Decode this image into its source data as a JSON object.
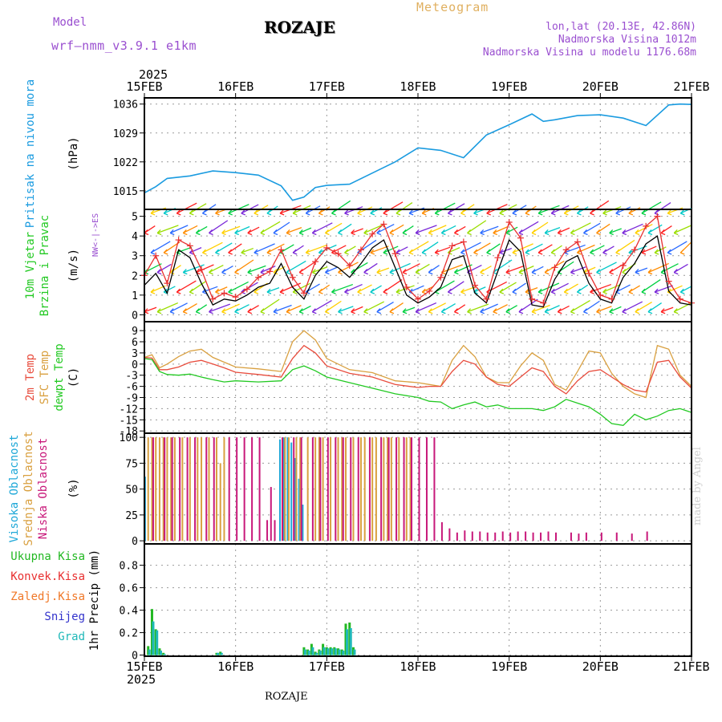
{
  "header": {
    "model_label": "Model",
    "model_name": "wrf—nmm_v3.9.1  e1km",
    "station": "ROZAJE",
    "chart_kind": "Meteogram",
    "lonlat": "lon,lat (20.13E, 42.86N)",
    "altitude": "Nadmorska Visina 1012m",
    "model_altitude": "Nadmorska Visina u modelu 1176.68m",
    "year_top": "2025",
    "year_bottom": "2025",
    "footer_station": "ROZAJE",
    "credit": "made by Angel"
  },
  "colors": {
    "pressure": "#1a9be0",
    "temp2m": "#e84c3d",
    "sfc": "#d9a040",
    "dewpt": "#22c922",
    "wind_speed": "#000000",
    "wind_gust": "#e83030",
    "high_cloud": "#1fa8d8",
    "mid_cloud": "#d9a040",
    "low_cloud": "#c8187a",
    "precip_total": "#22b822",
    "precip_conv": "#e83030",
    "precip_frz": "#f07828",
    "snow": "#3333cc",
    "graupel": "#1fb8b8",
    "model_label": "#9a4fd0",
    "meteogram_title": "#e0b060"
  },
  "chart_data": {
    "type": "line",
    "x_ticks": [
      "15FEB",
      "16FEB",
      "17FEB",
      "18FEB",
      "19FEB",
      "20FEB",
      "21FEB"
    ],
    "x_range_hours": [
      0,
      144
    ],
    "panels": [
      {
        "id": "pressure",
        "type": "line",
        "ylabel": [
          "Pritisak na nivou mora",
          "(hPa)"
        ],
        "yticks": [
          1015,
          1022,
          1029,
          1036
        ],
        "ylim": [
          1010.5,
          1037.5
        ],
        "series": [
          {
            "x": [
              0,
              3,
              6,
              12,
              18,
              24,
              30,
              36,
              39,
              42,
              45,
              48,
              54,
              60,
              66,
              72,
              78,
              84,
              90,
              96,
              102,
              105,
              108,
              114,
              120,
              126,
              132,
              138,
              141,
              144
            ],
            "values": [
              1014.5,
              1016.0,
              1018.0,
              1018.6,
              1019.8,
              1019.4,
              1018.8,
              1016.2,
              1012.7,
              1013.5,
              1015.8,
              1016.3,
              1016.6,
              1019.3,
              1022.0,
              1025.4,
              1024.8,
              1023.0,
              1028.5,
              1031.0,
              1033.6,
              1031.8,
              1032.2,
              1033.2,
              1033.4,
              1032.6,
              1030.8,
              1035.8,
              1036.0,
              1035.9
            ]
          }
        ]
      },
      {
        "id": "wind",
        "type": "line",
        "ylabel": [
          "10m Vjetar",
          "Brzina i Pravac",
          "(m/s)"
        ],
        "compass": [
          "N",
          "W",
          "<",
          "-",
          "|",
          "-",
          ">",
          "E",
          "S"
        ],
        "yticks": [
          0,
          1,
          2,
          3,
          4,
          5
        ],
        "ylim": [
          -0.35,
          5.35
        ],
        "series": [
          {
            "name": "speed",
            "x": [
              0,
              3,
              6,
              9,
              12,
              15,
              18,
              21,
              24,
              27,
              30,
              33,
              36,
              39,
              42,
              45,
              48,
              51,
              54,
              57,
              60,
              63,
              66,
              69,
              72,
              75,
              78,
              81,
              84,
              87,
              90,
              93,
              96,
              99,
              102,
              105,
              108,
              111,
              114,
              117,
              120,
              123,
              126,
              129,
              132,
              135,
              138,
              141,
              144
            ],
            "values": [
              1.5,
              2.1,
              1.1,
              3.3,
              2.9,
              1.6,
              0.5,
              0.8,
              0.7,
              1.0,
              1.4,
              1.6,
              2.6,
              1.4,
              0.8,
              2.0,
              2.7,
              2.4,
              1.9,
              2.6,
              3.4,
              3.8,
              2.4,
              1.0,
              0.6,
              0.9,
              1.4,
              2.8,
              3.0,
              1.1,
              0.6,
              2.2,
              3.8,
              3.2,
              0.5,
              0.4,
              1.8,
              2.7,
              3.0,
              1.6,
              0.8,
              0.6,
              1.9,
              2.6,
              3.6,
              4.0,
              1.2,
              0.6,
              0.5
            ]
          },
          {
            "name": "gust",
            "x": [
              0,
              3,
              6,
              9,
              12,
              15,
              18,
              21,
              24,
              27,
              30,
              33,
              36,
              39,
              42,
              45,
              48,
              51,
              54,
              57,
              60,
              63,
              66,
              69,
              72,
              75,
              78,
              81,
              84,
              87,
              90,
              93,
              96,
              99,
              102,
              105,
              108,
              111,
              114,
              117,
              120,
              123,
              126,
              129,
              132,
              135,
              138,
              141,
              144
            ],
            "values": [
              2.0,
              3.0,
              1.6,
              3.8,
              3.5,
              2.3,
              0.8,
              1.1,
              0.9,
              1.3,
              1.9,
              2.2,
              3.3,
              1.9,
              1.1,
              2.7,
              3.4,
              3.1,
              2.5,
              3.3,
              4.1,
              4.6,
              3.1,
              1.4,
              0.8,
              1.2,
              1.9,
              3.5,
              3.7,
              1.5,
              0.8,
              2.9,
              4.7,
              3.9,
              0.8,
              0.6,
              2.4,
              3.3,
              3.7,
              2.1,
              1.0,
              0.8,
              2.5,
              3.3,
              4.5,
              5.0,
              1.7,
              0.8,
              0.6
            ]
          }
        ]
      },
      {
        "id": "temperature",
        "type": "line",
        "ylabel": [
          "2m Temp",
          "SFC Temp",
          "dewpt Temp",
          "(C)"
        ],
        "yticks": [
          -18,
          -15,
          -12,
          -9,
          -6,
          -3,
          0,
          3,
          6,
          9
        ],
        "ylim": [
          -18.6,
          11.4
        ],
        "series": [
          {
            "name": "sfc",
            "x": [
              0,
              2,
              4,
              6,
              9,
              12,
              15,
              18,
              21,
              24,
              30,
              36,
              39,
              42,
              45,
              48,
              54,
              60,
              66,
              72,
              75,
              78,
              81,
              84,
              87,
              90,
              93,
              96,
              99,
              102,
              105,
              108,
              111,
              114,
              117,
              120,
              123,
              126,
              129,
              132,
              135,
              138,
              141,
              144
            ],
            "values": [
              1.8,
              2.5,
              -1.0,
              0.0,
              2.0,
              3.5,
              4.0,
              1.8,
              0.5,
              -0.8,
              -1.3,
              -2.0,
              6.0,
              9.0,
              6.5,
              1.5,
              -1.5,
              -2.3,
              -4.5,
              -5.0,
              -5.5,
              -6.0,
              1.0,
              5.0,
              2.0,
              -3.5,
              -5.0,
              -5.0,
              -0.5,
              3.0,
              1.0,
              -5.5,
              -7.0,
              -2.0,
              3.5,
              3.0,
              -2.5,
              -6.0,
              -8.0,
              -9.0,
              5.0,
              4.0,
              -3.0,
              -6.0
            ]
          },
          {
            "name": "temp2m",
            "x": [
              0,
              2,
              4,
              6,
              9,
              12,
              15,
              18,
              21,
              24,
              30,
              36,
              39,
              42,
              45,
              48,
              54,
              60,
              66,
              72,
              75,
              78,
              81,
              84,
              87,
              90,
              93,
              96,
              99,
              102,
              105,
              108,
              111,
              114,
              117,
              120,
              123,
              126,
              129,
              132,
              135,
              138,
              141,
              144
            ],
            "values": [
              1.8,
              1.6,
              -1.5,
              -1.5,
              -0.8,
              0.5,
              1.0,
              0.0,
              -1.0,
              -2.2,
              -2.8,
              -3.5,
              1.5,
              5.0,
              3.0,
              -0.5,
              -2.5,
              -3.5,
              -5.5,
              -6.3,
              -6.0,
              -6.0,
              -2.0,
              1.0,
              0.0,
              -3.5,
              -5.5,
              -6.0,
              -3.5,
              -1.0,
              -2.0,
              -6.0,
              -8.0,
              -4.5,
              -2.0,
              -1.5,
              -3.5,
              -5.5,
              -7.0,
              -7.5,
              0.5,
              1.0,
              -3.5,
              -6.5
            ]
          },
          {
            "name": "dewpt",
            "x": [
              0,
              2,
              4,
              6,
              9,
              12,
              15,
              18,
              21,
              24,
              30,
              36,
              39,
              42,
              45,
              48,
              54,
              60,
              66,
              72,
              75,
              78,
              81,
              84,
              87,
              90,
              93,
              96,
              99,
              102,
              105,
              108,
              111,
              114,
              117,
              120,
              123,
              126,
              129,
              132,
              135,
              138,
              141,
              144
            ],
            "values": [
              1.5,
              1.2,
              -2.0,
              -2.8,
              -3.0,
              -2.7,
              -3.5,
              -4.2,
              -4.8,
              -4.5,
              -4.8,
              -4.5,
              -1.5,
              -0.5,
              -1.8,
              -3.5,
              -5.0,
              -6.5,
              -8.0,
              -9.0,
              -10.0,
              -10.2,
              -12.0,
              -11.0,
              -10.2,
              -11.5,
              -11.0,
              -12.0,
              -12.0,
              -12.0,
              -12.5,
              -11.5,
              -9.5,
              -10.5,
              -11.5,
              -13.5,
              -16.0,
              -16.5,
              -13.5,
              -15.0,
              -14.0,
              -12.5,
              -12.0,
              -13.0
            ]
          }
        ]
      },
      {
        "id": "clouds",
        "type": "bar",
        "ylabel": [
          "Visoka Oblacnost",
          "Srednja Oblacnost",
          "Niska Oblacnost",
          "(%)"
        ],
        "yticks": [
          0,
          25,
          50,
          75,
          100
        ],
        "ylim": [
          -3,
          104
        ],
        "series": [
          {
            "name": "high",
            "x": [
              0.5,
              36,
              37,
              38,
              39,
              40,
              41,
              42
            ],
            "values": [
              62,
              98,
              100,
              100,
              95,
              80,
              60,
              35
            ]
          },
          {
            "name": "mid",
            "x": [
              1,
              2,
              3,
              4,
              5,
              6,
              7,
              8,
              10,
              12,
              14,
              15,
              17,
              19,
              20,
              21,
              37,
              38,
              40,
              41,
              43,
              45,
              46,
              47,
              49,
              51,
              52,
              53,
              55,
              57,
              58,
              60,
              61,
              63,
              64,
              65,
              67,
              69,
              70
            ],
            "values": [
              100,
              100,
              100,
              100,
              100,
              100,
              100,
              100,
              100,
              100,
              100,
              100,
              100,
              100,
              75,
              100,
              100,
              100,
              100,
              100,
              100,
              100,
              100,
              100,
              100,
              100,
              100,
              100,
              100,
              100,
              100,
              100,
              100,
              100,
              100,
              100,
              100,
              100,
              100
            ]
          },
          {
            "name": "low",
            "x": [
              2,
              5,
              7,
              9,
              11,
              13,
              16,
              18,
              22,
              24,
              26,
              28,
              30,
              32,
              33,
              34,
              36,
              39,
              41,
              44,
              46,
              48,
              50,
              52,
              54,
              56,
              59,
              62,
              64,
              66,
              68,
              70,
              72,
              74,
              76,
              78,
              80,
              82,
              84,
              86,
              88,
              90,
              92,
              94,
              96,
              98,
              100,
              102,
              104,
              106,
              108,
              112,
              114,
              116,
              120,
              124,
              128,
              132
            ],
            "values": [
              100,
              100,
              100,
              100,
              100,
              100,
              100,
              100,
              100,
              100,
              100,
              100,
              100,
              20,
              52,
              20,
              100,
              100,
              100,
              100,
              100,
              100,
              100,
              100,
              100,
              100,
              100,
              100,
              100,
              100,
              100,
              100,
              100,
              100,
              100,
              18,
              12,
              8,
              10,
              9,
              9,
              8,
              8,
              9,
              8,
              9,
              9,
              8,
              8,
              9,
              8,
              8,
              7,
              8,
              8,
              8,
              7,
              9
            ]
          }
        ]
      },
      {
        "id": "precip",
        "type": "bar",
        "ylabel": [
          "Ukupna Kisa",
          "Konvek.Kisa",
          "Zaledj.Kisa",
          "Snijeg",
          "Grad",
          "1hr Precip (mm)"
        ],
        "yticks": [
          0,
          0.2,
          0.4,
          0.6,
          0.8
        ],
        "ylim": [
          -0.01,
          0.99
        ],
        "series": [
          {
            "name": "total",
            "x": [
              1,
              2,
              3,
              4,
              5,
              19,
              20,
              42,
              43,
              44,
              45,
              46,
              47,
              48,
              49,
              50,
              51,
              52,
              53,
              54,
              55
            ],
            "values": [
              0.08,
              0.41,
              0.23,
              0.06,
              0.02,
              0.02,
              0.03,
              0.07,
              0.05,
              0.1,
              0.03,
              0.05,
              0.1,
              0.07,
              0.07,
              0.07,
              0.06,
              0.05,
              0.28,
              0.29,
              0.07
            ]
          },
          {
            "name": "snow",
            "x": [
              1,
              2,
              3,
              4,
              5,
              19,
              20,
              42,
              43,
              44,
              45,
              46,
              47,
              48,
              49,
              50,
              51,
              52,
              53,
              54,
              55
            ],
            "values": [
              0.05,
              0.3,
              0.22,
              0.04,
              0.01,
              0.02,
              0.02,
              0.05,
              0.04,
              0.07,
              0.02,
              0.04,
              0.07,
              0.06,
              0.06,
              0.06,
              0.05,
              0.04,
              0.23,
              0.24,
              0.05
            ]
          }
        ]
      }
    ]
  }
}
